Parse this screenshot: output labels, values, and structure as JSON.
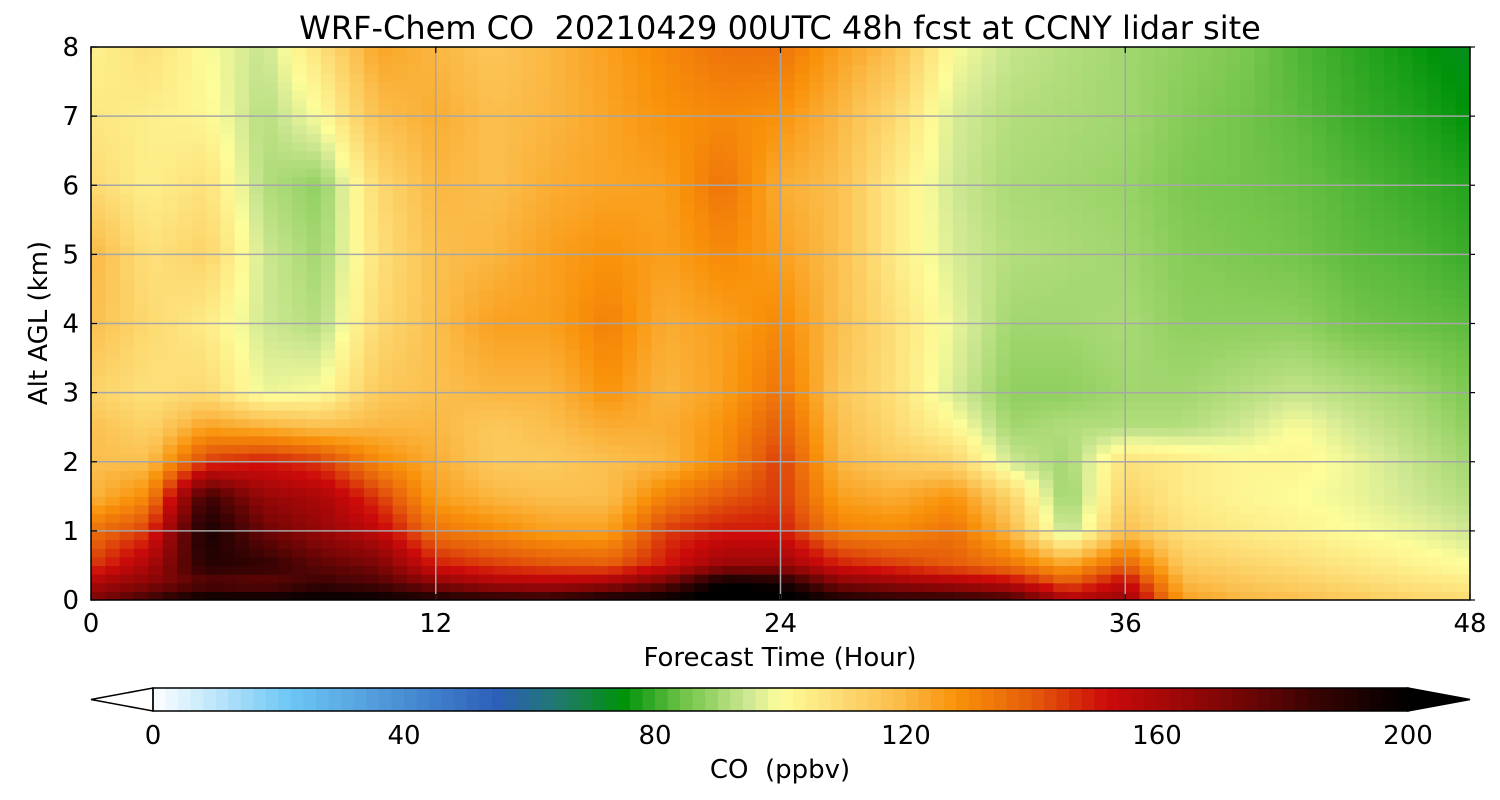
{
  "chart_data": {
    "type": "heatmap",
    "title": "WRF-Chem CO  20210429 00UTC 48h fcst at CCNY lidar site",
    "xlabel": "Forecast Time (Hour)",
    "ylabel": "Alt AGL (km)",
    "xlim": [
      0,
      48
    ],
    "ylim": [
      0,
      8
    ],
    "x_ticks": [
      0,
      12,
      24,
      36,
      48
    ],
    "y_ticks": [
      0,
      1,
      2,
      3,
      4,
      5,
      6,
      7,
      8
    ],
    "grid": true,
    "x": [
      0,
      2,
      4,
      6,
      8,
      10,
      12,
      14,
      16,
      18,
      20,
      22,
      24,
      26,
      28,
      30,
      32,
      34,
      36,
      38,
      40,
      42,
      44,
      46,
      48
    ],
    "y": [
      0,
      0.25,
      0.5,
      1,
      1.5,
      2,
      2.5,
      3,
      4,
      5,
      6,
      7,
      8
    ],
    "z": [
      [
        170,
        185,
        200,
        200,
        200,
        200,
        195,
        192,
        190,
        198,
        200,
        205,
        205,
        195,
        190,
        190,
        185,
        160,
        165,
        125,
        120,
        118,
        115,
        112,
        110
      ],
      [
        160,
        168,
        178,
        175,
        185,
        180,
        168,
        160,
        158,
        162,
        175,
        200,
        195,
        170,
        165,
        160,
        155,
        140,
        155,
        120,
        116,
        113,
        110,
        107,
        105
      ],
      [
        145,
        160,
        190,
        188,
        178,
        172,
        150,
        145,
        142,
        140,
        150,
        165,
        165,
        150,
        145,
        140,
        135,
        125,
        140,
        115,
        112,
        109,
        106,
        103,
        100
      ],
      [
        135,
        145,
        195,
        175,
        165,
        155,
        135,
        130,
        125,
        125,
        145,
        150,
        150,
        132,
        130,
        135,
        120,
        92,
        118,
        108,
        105,
        103,
        100,
        98,
        95
      ],
      [
        120,
        130,
        185,
        165,
        160,
        145,
        125,
        120,
        118,
        118,
        132,
        140,
        145,
        125,
        122,
        128,
        112,
        88,
        112,
        105,
        102,
        100,
        98,
        95,
        92
      ],
      [
        118,
        118,
        145,
        150,
        145,
        130,
        122,
        115,
        115,
        118,
        120,
        130,
        145,
        120,
        115,
        112,
        95,
        90,
        108,
        105,
        102,
        102,
        98,
        94,
        90
      ],
      [
        118,
        112,
        125,
        122,
        118,
        120,
        120,
        115,
        118,
        122,
        122,
        128,
        140,
        118,
        110,
        102,
        90,
        92,
        92,
        92,
        95,
        100,
        95,
        92,
        88
      ],
      [
        112,
        108,
        110,
        98,
        100,
        115,
        118,
        120,
        120,
        128,
        120,
        125,
        135,
        116,
        108,
        96,
        88,
        88,
        90,
        90,
        92,
        94,
        92,
        90,
        86
      ],
      [
        118,
        110,
        105,
        95,
        92,
        110,
        118,
        125,
        125,
        132,
        122,
        125,
        130,
        118,
        108,
        98,
        90,
        90,
        91,
        88,
        88,
        88,
        85,
        84,
        83
      ],
      [
        120,
        108,
        112,
        95,
        90,
        108,
        118,
        120,
        125,
        128,
        125,
        130,
        125,
        118,
        105,
        96,
        92,
        91,
        90,
        87,
        86,
        85,
        83,
        82,
        80
      ],
      [
        110,
        104,
        108,
        92,
        88,
        110,
        120,
        118,
        122,
        124,
        125,
        135,
        122,
        118,
        105,
        95,
        91,
        90,
        89,
        86,
        85,
        84,
        82,
        80,
        78
      ],
      [
        106,
        104,
        102,
        92,
        100,
        118,
        122,
        118,
        120,
        124,
        128,
        130,
        128,
        120,
        110,
        96,
        92,
        91,
        90,
        87,
        85,
        83,
        80,
        78,
        75
      ],
      [
        103,
        108,
        100,
        94,
        108,
        124,
        120,
        116,
        120,
        125,
        130,
        135,
        135,
        125,
        118,
        100,
        94,
        92,
        90,
        88,
        86,
        82,
        79,
        76,
        73
      ]
    ]
  },
  "colorbar": {
    "label": "CO  (ppbv)",
    "ticks": [
      0,
      40,
      80,
      120,
      160,
      200
    ],
    "min": 0,
    "max": 200,
    "extend": "both",
    "stops": [
      {
        "v": 0,
        "c": "#ffffff"
      },
      {
        "v": 22,
        "c": "#6cc6f4"
      },
      {
        "v": 55,
        "c": "#2c5fb8"
      },
      {
        "v": 65,
        "c": "#1f7a6a"
      },
      {
        "v": 75,
        "c": "#00930a"
      },
      {
        "v": 85,
        "c": "#74c54a"
      },
      {
        "v": 95,
        "c": "#cfe893"
      },
      {
        "v": 100,
        "c": "#fdfd9a"
      },
      {
        "v": 108,
        "c": "#fde07a"
      },
      {
        "v": 118,
        "c": "#fbbf4e"
      },
      {
        "v": 128,
        "c": "#f9920a"
      },
      {
        "v": 140,
        "c": "#e55c0b"
      },
      {
        "v": 152,
        "c": "#cc0a0a"
      },
      {
        "v": 170,
        "c": "#820606"
      },
      {
        "v": 185,
        "c": "#3a0303"
      },
      {
        "v": 200,
        "c": "#000000"
      }
    ]
  }
}
